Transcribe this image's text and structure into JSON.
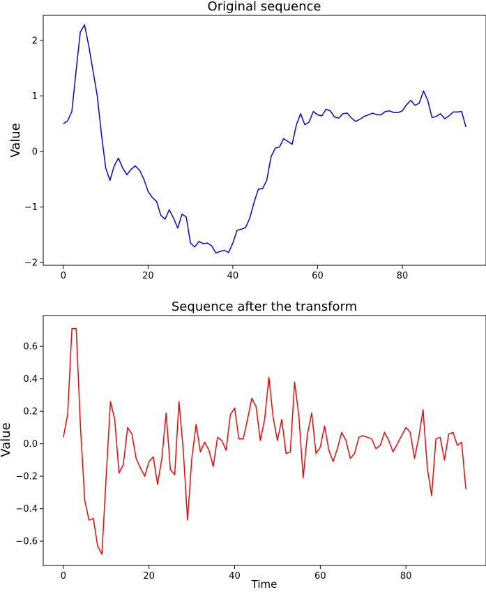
{
  "chart_data": [
    {
      "type": "line",
      "title": "Original sequence",
      "xlabel": "",
      "ylabel": "Value",
      "xlim": [
        -4.75,
        99.75
      ],
      "ylim": [
        -2.05,
        2.45
      ],
      "xticks": [
        0,
        20,
        40,
        60,
        80
      ],
      "yticks": [
        -2,
        -1,
        0,
        1,
        2
      ],
      "grid": false,
      "series": [
        {
          "color": "#0000ff",
          "x": [
            0,
            1,
            2,
            3,
            4,
            5,
            6,
            7,
            8,
            9,
            10,
            11,
            12,
            13,
            14,
            15,
            16,
            17,
            18,
            19,
            20,
            21,
            22,
            23,
            24,
            25,
            26,
            27,
            28,
            29,
            30,
            31,
            32,
            33,
            34,
            35,
            36,
            37,
            38,
            39,
            40,
            41,
            42,
            43,
            44,
            45,
            46,
            47,
            48,
            49,
            50,
            51,
            52,
            53,
            54,
            55,
            56,
            57,
            58,
            59,
            60,
            61,
            62,
            63,
            64,
            65,
            66,
            67,
            68,
            69,
            70,
            71,
            72,
            73,
            74,
            75,
            76,
            77,
            78,
            79,
            80,
            81,
            82,
            83,
            84,
            85,
            86,
            87,
            88,
            89,
            90,
            91,
            92,
            93,
            94,
            95
          ],
          "y": [
            0.5,
            0.55,
            0.72,
            1.45,
            2.15,
            2.28,
            1.9,
            1.45,
            1.0,
            0.3,
            -0.3,
            -0.52,
            -0.26,
            -0.12,
            -0.3,
            -0.42,
            -0.32,
            -0.26,
            -0.34,
            -0.5,
            -0.72,
            -0.83,
            -0.9,
            -1.15,
            -1.22,
            -1.05,
            -1.2,
            -1.38,
            -1.13,
            -1.18,
            -1.65,
            -1.72,
            -1.62,
            -1.66,
            -1.65,
            -1.7,
            -1.83,
            -1.8,
            -1.78,
            -1.82,
            -1.65,
            -1.42,
            -1.4,
            -1.37,
            -1.2,
            -0.92,
            -0.68,
            -0.67,
            -0.52,
            -0.1,
            0.06,
            0.08,
            0.23,
            0.18,
            0.13,
            0.48,
            0.68,
            0.48,
            0.53,
            0.72,
            0.66,
            0.64,
            0.76,
            0.73,
            0.62,
            0.6,
            0.68,
            0.69,
            0.6,
            0.54,
            0.58,
            0.63,
            0.66,
            0.69,
            0.66,
            0.66,
            0.72,
            0.73,
            0.7,
            0.7,
            0.73,
            0.84,
            0.92,
            0.83,
            0.87,
            1.09,
            0.92,
            0.61,
            0.63,
            0.68,
            0.59,
            0.64,
            0.71,
            0.71,
            0.72,
            0.44
          ]
        }
      ]
    },
    {
      "type": "line",
      "title": "Sequence after the transform",
      "xlabel": "Time",
      "ylabel": "Value",
      "xlim": [
        -4.7,
        98.7
      ],
      "ylim": [
        -0.75,
        0.79
      ],
      "xticks": [
        0,
        20,
        40,
        60,
        80
      ],
      "yticks": [
        -0.6,
        -0.4,
        -0.2,
        0.0,
        0.2,
        0.4,
        0.6
      ],
      "ytick_labels": [
        "−0.6",
        "−0.4",
        "−0.2",
        "0.0",
        "0.2",
        "0.4",
        "0.6"
      ],
      "grid": false,
      "series": [
        {
          "color": "#ff0000",
          "x": [
            0,
            1,
            2,
            3,
            4,
            5,
            6,
            7,
            8,
            9,
            10,
            11,
            12,
            13,
            14,
            15,
            16,
            17,
            18,
            19,
            20,
            21,
            22,
            23,
            24,
            25,
            26,
            27,
            28,
            29,
            30,
            31,
            32,
            33,
            34,
            35,
            36,
            37,
            38,
            39,
            40,
            41,
            42,
            43,
            44,
            45,
            46,
            47,
            48,
            49,
            50,
            51,
            52,
            53,
            54,
            55,
            56,
            57,
            58,
            59,
            60,
            61,
            62,
            63,
            64,
            65,
            66,
            67,
            68,
            69,
            70,
            71,
            72,
            73,
            74,
            75,
            76,
            77,
            78,
            79,
            80,
            81,
            82,
            83,
            84,
            85,
            86,
            87,
            88,
            89,
            90,
            91,
            92,
            93,
            94
          ],
          "y": [
            0.04,
            0.18,
            0.71,
            0.71,
            0.1,
            -0.35,
            -0.47,
            -0.46,
            -0.63,
            -0.68,
            -0.2,
            0.26,
            0.15,
            -0.18,
            -0.13,
            0.1,
            0.06,
            -0.09,
            -0.15,
            -0.2,
            -0.11,
            -0.08,
            -0.25,
            -0.09,
            0.19,
            -0.16,
            -0.19,
            0.26,
            -0.04,
            -0.47,
            -0.09,
            0.12,
            -0.05,
            0.01,
            -0.04,
            -0.14,
            0.04,
            0.02,
            -0.04,
            0.18,
            0.22,
            0.03,
            0.03,
            0.15,
            0.28,
            0.23,
            0.02,
            0.15,
            0.41,
            0.16,
            0.02,
            0.15,
            -0.06,
            -0.05,
            0.38,
            0.17,
            -0.21,
            0.06,
            0.19,
            -0.06,
            -0.02,
            0.11,
            -0.04,
            -0.11,
            -0.03,
            0.07,
            0.02,
            -0.09,
            -0.06,
            0.04,
            0.05,
            0.04,
            0.03,
            -0.03,
            -0.01,
            0.07,
            0.02,
            -0.05,
            0.0,
            0.05,
            0.1,
            0.07,
            -0.09,
            0.04,
            0.21,
            -0.15,
            -0.32,
            0.03,
            0.04,
            -0.1,
            0.06,
            0.07,
            -0.01,
            0.01,
            -0.28
          ]
        }
      ]
    }
  ]
}
